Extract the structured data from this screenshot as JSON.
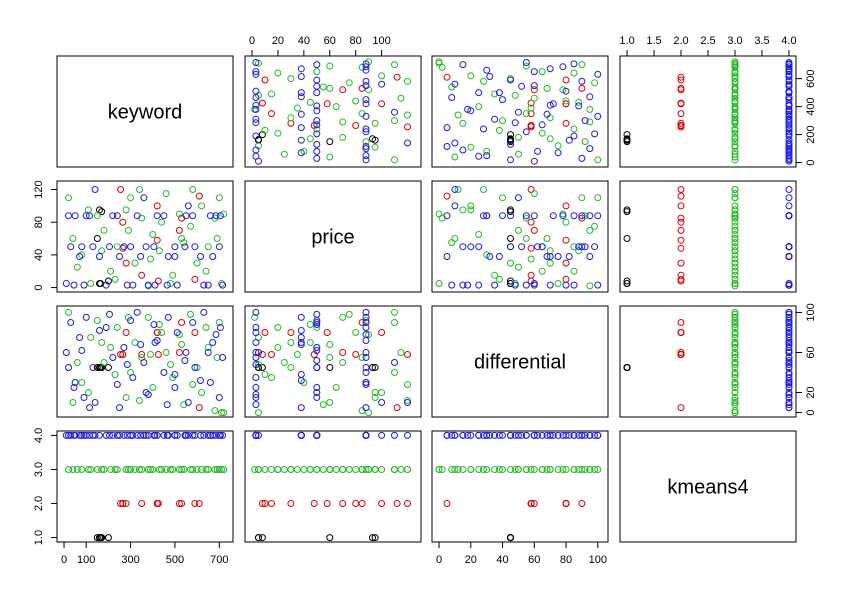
{
  "chart_data": {
    "type": "scatter",
    "title": "",
    "variables": [
      {
        "name": "keyword",
        "range": [
          0,
          730
        ],
        "ticks": [
          0,
          100,
          300,
          500,
          700
        ]
      },
      {
        "name": "price",
        "range": [
          0,
          125
        ],
        "ticks": [
          0,
          20,
          40,
          60,
          80,
          100,
          120
        ]
      },
      {
        "name": "differential",
        "range": [
          0,
          102
        ],
        "ticks": [
          0,
          20,
          40,
          60,
          80,
          100
        ]
      },
      {
        "name": "kmeans4",
        "range": [
          1,
          4
        ],
        "ticks": [
          1.0,
          1.5,
          2.0,
          2.5,
          3.0,
          3.5,
          4.0
        ]
      }
    ],
    "axis_tick_labels": {
      "bottom": {
        "keyword": [
          "0",
          "100",
          "300",
          "500",
          "700"
        ],
        "differential": [
          "0",
          "20",
          "40",
          "60",
          "80",
          "100"
        ]
      },
      "top": {
        "price": [
          "0",
          "20",
          "40",
          "60",
          "80",
          "100"
        ],
        "kmeans4": [
          "1.0",
          "1.5",
          "2.0",
          "2.5",
          "3.0",
          "3.5",
          "4.0"
        ]
      },
      "left": {
        "price": [
          "0",
          "40",
          "80",
          "120"
        ],
        "kmeans4": [
          "1.0",
          "2.0",
          "3.0",
          "4.0"
        ]
      },
      "right": {
        "keyword": [
          "0",
          "200",
          "400",
          "600"
        ],
        "differential": [
          "0",
          "20",
          "60",
          "100"
        ]
      }
    },
    "cluster_colors": {
      "1": "#000000",
      "2": "#df0000",
      "3": "#22bb22",
      "4": "#1a1aee"
    },
    "clusters": [
      {
        "cluster": 1,
        "points": [
          [
            160,
            5,
            45
          ],
          [
            165,
            5,
            45
          ],
          [
            200,
            8,
            45
          ],
          [
            150,
            60,
            45
          ],
          [
            170,
            93,
            45
          ],
          [
            160,
            95,
            45
          ]
        ]
      },
      {
        "cluster": 2,
        "points": [
          [
            255,
            120,
            58
          ],
          [
            265,
            80,
            58
          ],
          [
            280,
            30,
            80
          ],
          [
            350,
            15,
            58
          ],
          [
            420,
            100,
            80
          ],
          [
            425,
            8,
            58
          ],
          [
            520,
            70,
            60
          ],
          [
            530,
            85,
            90
          ],
          [
            590,
            10,
            80
          ],
          [
            610,
            112,
            5
          ],
          [
            265,
            48,
            58
          ],
          [
            420,
            58,
            80
          ]
        ]
      },
      {
        "cluster": 3,
        "points": [
          [
            20,
            110,
            100
          ],
          [
            40,
            60,
            10
          ],
          [
            80,
            40,
            30
          ],
          [
            120,
            5,
            75
          ],
          [
            150,
            88,
            92
          ],
          [
            180,
            70,
            50
          ],
          [
            210,
            20,
            65
          ],
          [
            240,
            50,
            85
          ],
          [
            280,
            95,
            15
          ],
          [
            300,
            110,
            40
          ],
          [
            320,
            30,
            70
          ],
          [
            350,
            85,
            55
          ],
          [
            380,
            2,
            95
          ],
          [
            400,
            65,
            25
          ],
          [
            430,
            45,
            88
          ],
          [
            460,
            115,
            60
          ],
          [
            490,
            15,
            35
          ],
          [
            520,
            90,
            78
          ],
          [
            540,
            55,
            8
          ],
          [
            570,
            75,
            98
          ],
          [
            600,
            30,
            45
          ],
          [
            620,
            100,
            20
          ],
          [
            650,
            50,
            65
          ],
          [
            680,
            85,
            2
          ],
          [
            700,
            110,
            90
          ],
          [
            60,
            25,
            50
          ],
          [
            110,
            95,
            20
          ],
          [
            170,
            45,
            70
          ],
          [
            230,
            10,
            38
          ],
          [
            290,
            70,
            95
          ],
          [
            340,
            120,
            12
          ],
          [
            390,
            35,
            58
          ],
          [
            440,
            80,
            80
          ],
          [
            480,
            5,
            48
          ],
          [
            530,
            60,
            68
          ],
          [
            580,
            120,
            28
          ],
          [
            640,
            20,
            85
          ],
          [
            690,
            60,
            55
          ],
          [
            710,
            5,
            0
          ],
          [
            720,
            90,
            0
          ]
        ]
      },
      {
        "cluster": 4,
        "points": [
          [
            10,
            5,
            60
          ],
          [
            30,
            50,
            90
          ],
          [
            50,
            88,
            30
          ],
          [
            70,
            38,
            75
          ],
          [
            90,
            3,
            15
          ],
          [
            100,
            88,
            95
          ],
          [
            130,
            50,
            45
          ],
          [
            140,
            120,
            10
          ],
          [
            190,
            3,
            85
          ],
          [
            220,
            88,
            55
          ],
          [
            250,
            38,
            5
          ],
          [
            270,
            50,
            65
          ],
          [
            310,
            3,
            35
          ],
          [
            330,
            88,
            100
          ],
          [
            360,
            110,
            50
          ],
          [
            370,
            50,
            20
          ],
          [
            410,
            3,
            70
          ],
          [
            450,
            88,
            40
          ],
          [
            470,
            38,
            95
          ],
          [
            500,
            50,
            25
          ],
          [
            510,
            3,
            80
          ],
          [
            550,
            88,
            60
          ],
          [
            560,
            100,
            10
          ],
          [
            590,
            50,
            45
          ],
          [
            630,
            3,
            100
          ],
          [
            660,
            88,
            30
          ],
          [
            670,
            38,
            70
          ],
          [
            700,
            50,
            15
          ],
          [
            715,
            3,
            55
          ],
          [
            705,
            88,
            85
          ],
          [
            20,
            88,
            45
          ],
          [
            80,
            50,
            62
          ],
          [
            160,
            38,
            82
          ],
          [
            240,
            88,
            28
          ],
          [
            300,
            50,
            92
          ],
          [
            380,
            3,
            18
          ],
          [
            420,
            88,
            72
          ],
          [
            500,
            38,
            38
          ],
          [
            580,
            88,
            90
          ],
          [
            650,
            3,
            60
          ],
          [
            45,
            3,
            25
          ],
          [
            115,
            88,
            5
          ],
          [
            205,
            50,
            98
          ],
          [
            285,
            3,
            48
          ],
          [
            345,
            38,
            68
          ],
          [
            405,
            50,
            88
          ],
          [
            465,
            3,
            8
          ],
          [
            545,
            50,
            52
          ],
          [
            615,
            38,
            32
          ],
          [
            685,
            88,
            78
          ]
        ]
      }
    ]
  }
}
